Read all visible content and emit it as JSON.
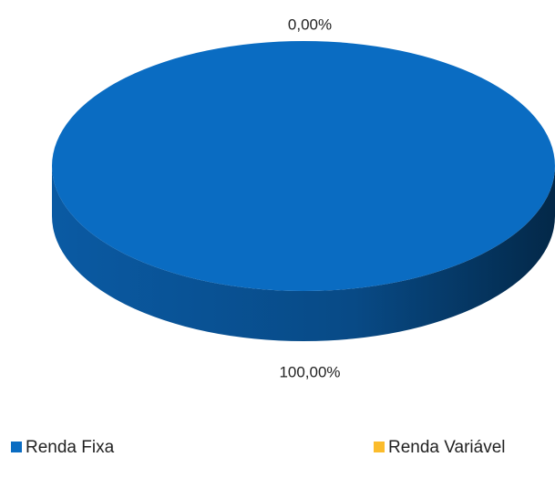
{
  "chart_data": {
    "type": "pie",
    "categories": [
      "Renda Fixa",
      "Renda Variável"
    ],
    "values": [
      100,
      0
    ],
    "value_labels": [
      "100,00%",
      "0,00%"
    ],
    "colors": [
      "#0a6cc2",
      "#fbbc2c"
    ]
  }
}
